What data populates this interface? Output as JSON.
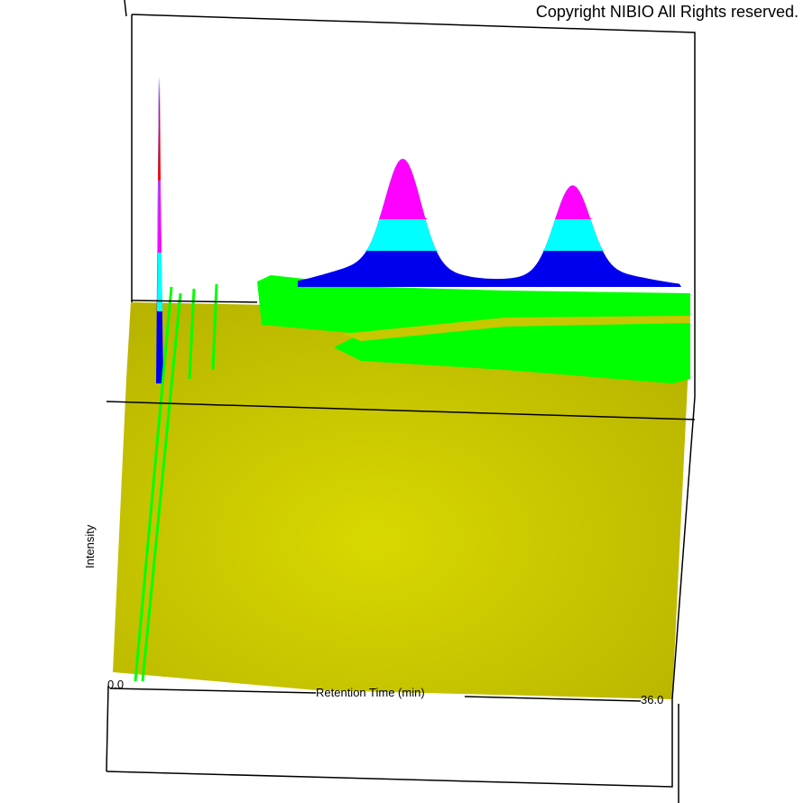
{
  "copyright": "Copyright NIBIO All Rights reserved.",
  "chart_data": {
    "type": "surface",
    "xlabel": "Retention Time (min)",
    "ylabel": "Intensity",
    "x_tick_labels": [
      "0.0",
      "36.0"
    ],
    "xlim": [
      0.0,
      36.0
    ],
    "colors": {
      "base": "#d4d400",
      "low": "#00ff00",
      "mid": "#0000ee",
      "high": "#00ffff",
      "higher": "#ff00ff",
      "top": "#ff0000"
    },
    "peaks": [
      {
        "x": 3.0,
        "relative_height": 1.0
      },
      {
        "x": 18.1,
        "relative_height": 0.46
      },
      {
        "x": 29.0,
        "relative_height": 0.38
      }
    ]
  }
}
